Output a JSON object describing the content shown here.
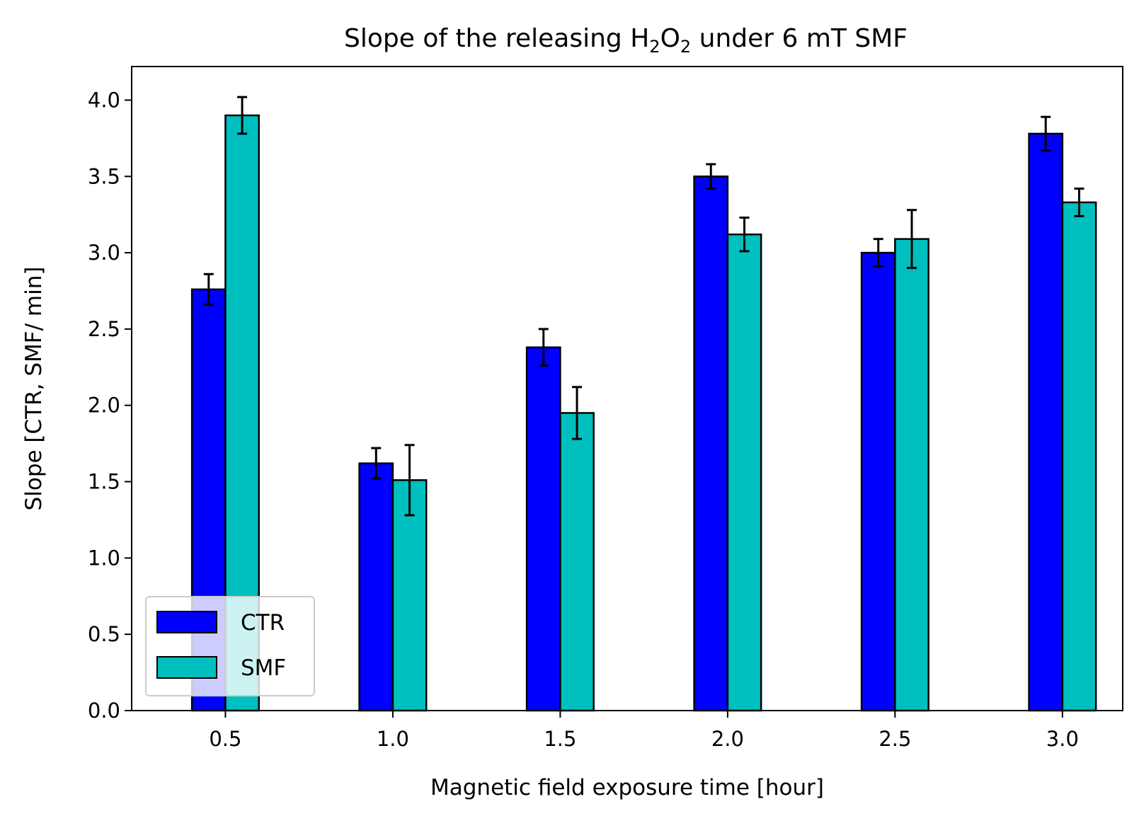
{
  "chart_data": {
    "type": "bar",
    "title_parts": [
      "Slope of the releasing H",
      "2",
      "O",
      "2",
      " under 6 mT SMF"
    ],
    "xlabel": "Magnetic field exposure time [hour]",
    "ylabel": "Slope [CTR, SMF/ min]",
    "x": [
      0.5,
      1.0,
      1.5,
      2.0,
      2.5,
      3.0
    ],
    "x_tick_labels": [
      "0.5",
      "1.0",
      "1.5",
      "2.0",
      "2.5",
      "3.0"
    ],
    "xlim": [
      0.22,
      3.18
    ],
    "ylim": [
      0,
      4.22
    ],
    "y_ticks": [
      0.0,
      0.5,
      1.0,
      1.5,
      2.0,
      2.5,
      3.0,
      3.5,
      4.0
    ],
    "y_tick_labels": [
      "0.0",
      "0.5",
      "1.0",
      "1.5",
      "2.0",
      "2.5",
      "3.0",
      "3.5",
      "4.0"
    ],
    "bar_width": 0.1,
    "grid": false,
    "legend_position": "lower-left",
    "series": [
      {
        "name": "CTR",
        "color": "#0000ff",
        "offset": -0.05,
        "values": [
          2.76,
          1.62,
          2.38,
          3.5,
          3.0,
          3.78
        ],
        "errors": [
          0.1,
          0.1,
          0.12,
          0.08,
          0.09,
          0.11
        ]
      },
      {
        "name": "SMF",
        "color": "#00bfbf",
        "offset": 0.05,
        "values": [
          3.9,
          1.51,
          1.95,
          3.12,
          3.09,
          3.33
        ],
        "errors": [
          0.12,
          0.23,
          0.17,
          0.11,
          0.19,
          0.09
        ]
      }
    ]
  }
}
